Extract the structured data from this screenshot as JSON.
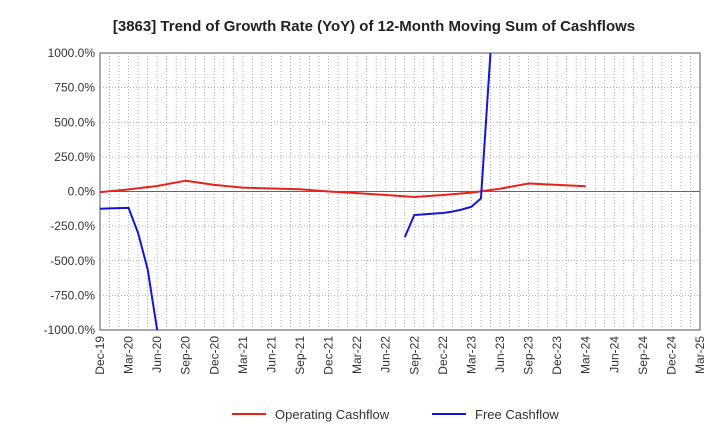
{
  "chart_data": {
    "type": "line",
    "title": "[3863]  Trend of Growth Rate (YoY) of 12-Month Moving Sum of Cashflows",
    "xlabel": "",
    "ylabel": "",
    "ylim": [
      -1000,
      1000
    ],
    "y_ticks": [
      1000,
      750,
      500,
      250,
      0,
      -250,
      -500,
      -750,
      -1000
    ],
    "y_tick_labels": [
      "1000.0%",
      "750.0%",
      "500.0%",
      "250.0%",
      "0.0%",
      "-250.0%",
      "-500.0%",
      "-750.0%",
      "-1000.0%"
    ],
    "x_tick_labels": [
      "Dec-19",
      "Mar-20",
      "Jun-20",
      "Sep-20",
      "Dec-20",
      "Mar-21",
      "Jun-21",
      "Sep-21",
      "Dec-21",
      "Mar-22",
      "Jun-22",
      "Sep-22",
      "Dec-22",
      "Mar-23",
      "Jun-23",
      "Sep-23",
      "Dec-23",
      "Mar-24",
      "Jun-24",
      "Sep-24",
      "Dec-24",
      "Mar-25"
    ],
    "x_range": [
      "Dec-19",
      "Mar-25"
    ],
    "grid": true,
    "legend_position": "bottom",
    "series": [
      {
        "name": "Operating Cashflow",
        "color": "#e8221b",
        "points": [
          [
            "Dec-19",
            -5
          ],
          [
            "Mar-20",
            15
          ],
          [
            "Jun-20",
            40
          ],
          [
            "Sep-20",
            78
          ],
          [
            "Dec-20",
            48
          ],
          [
            "Mar-21",
            28
          ],
          [
            "Jun-21",
            22
          ],
          [
            "Sep-21",
            16
          ],
          [
            "Dec-21",
            0
          ],
          [
            "Mar-22",
            -12
          ],
          [
            "Jun-22",
            -25
          ],
          [
            "Sep-22",
            -40
          ],
          [
            "Dec-22",
            -25
          ],
          [
            "Mar-23",
            -8
          ],
          [
            "Jun-23",
            20
          ],
          [
            "Sep-23",
            58
          ],
          [
            "Dec-23",
            48
          ],
          [
            "Mar-24",
            38
          ]
        ]
      },
      {
        "name": "Free Cashflow",
        "color": "#1414d8",
        "segments": [
          [
            [
              "Dec-19",
              -125
            ],
            [
              "Jan-20",
              -122
            ],
            [
              "Feb-20",
              -120
            ],
            [
              "Mar-20",
              -118
            ],
            [
              "Apr-20",
              -300
            ],
            [
              "May-20",
              -560
            ],
            [
              "Jun-20",
              -1000
            ]
          ],
          [
            [
              "Aug-22",
              -330
            ],
            [
              "Sep-22",
              -170
            ],
            [
              "Oct-22",
              -165
            ],
            [
              "Nov-22",
              -160
            ],
            [
              "Dec-22",
              -155
            ],
            [
              "Jan-23",
              -145
            ],
            [
              "Feb-23",
              -130
            ],
            [
              "Mar-23",
              -110
            ],
            [
              "Apr-23",
              -50
            ],
            [
              "May-23",
              1000
            ]
          ]
        ]
      }
    ]
  }
}
